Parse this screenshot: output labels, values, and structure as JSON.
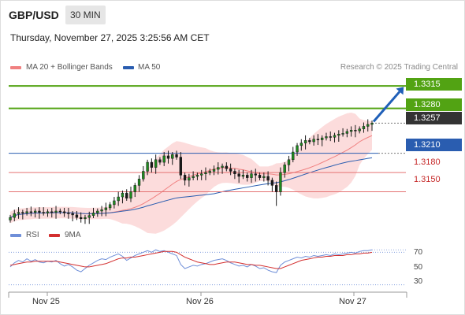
{
  "header": {
    "pair": "GBP/USD",
    "timeframe": "30 MIN",
    "timestamp": "Thursday, November 27, 2025 3:25:56 AM CET"
  },
  "legend": {
    "ma20": "MA 20 + Bollinger Bands",
    "ma50": "MA 50",
    "credit": "Research © 2025 Trading Central"
  },
  "rsi_legend": {
    "rsi": "RSI",
    "ma9": "9MA"
  },
  "colors": {
    "candle": "#1e8a1e",
    "ma20": "#f08080",
    "bollinger": "#fbd0d0",
    "ma50": "#2a5db0",
    "target": "#52a313",
    "pivot": "#2a5db0",
    "support": "#e57373",
    "current": "#333333",
    "rsi": "#6f8fd8",
    "rsi_ma": "#d32f2f",
    "arrow": "#1f5fb8"
  },
  "chart_data": [
    {
      "type": "candlestick",
      "x_ticks": [
        "Nov 25",
        "Nov 26",
        "Nov 27"
      ],
      "ylim": [
        1.3093,
        1.3336
      ],
      "levels": [
        {
          "value": 1.3315,
          "label": "1.3315",
          "role": "target"
        },
        {
          "value": 1.328,
          "label": "1.3280",
          "role": "target"
        },
        {
          "value": 1.3257,
          "label": "1.3257",
          "role": "current"
        },
        {
          "value": 1.321,
          "label": "1.3210",
          "role": "pivot"
        },
        {
          "value": 1.318,
          "label": "1.3180",
          "role": "support"
        },
        {
          "value": 1.315,
          "label": "1.3150",
          "role": "support"
        }
      ],
      "close": [
        1.311,
        1.3116,
        1.3118,
        1.3117,
        1.3119,
        1.3118,
        1.312,
        1.3118,
        1.3117,
        1.3119,
        1.3118,
        1.312,
        1.3119,
        1.3117,
        1.3116,
        1.3114,
        1.311,
        1.3108,
        1.311,
        1.3113,
        1.3117,
        1.312,
        1.3122,
        1.3125,
        1.313,
        1.3136,
        1.3142,
        1.3148,
        1.314,
        1.315,
        1.316,
        1.317,
        1.3182,
        1.3196,
        1.3188,
        1.32,
        1.3196,
        1.3206,
        1.3202,
        1.3208,
        1.3204,
        1.3176,
        1.3168,
        1.3172,
        1.3174,
        1.3176,
        1.3178,
        1.318,
        1.3182,
        1.3185,
        1.3188,
        1.319,
        1.3186,
        1.3182,
        1.3178,
        1.3174,
        1.3176,
        1.3172,
        1.3178,
        1.3176,
        1.3172,
        1.3174,
        1.3168,
        1.316,
        1.315,
        1.318,
        1.3192,
        1.32,
        1.3212,
        1.3222,
        1.3226,
        1.323,
        1.3228,
        1.3232,
        1.3231,
        1.3234,
        1.3236,
        1.3235,
        1.3238,
        1.324,
        1.3241,
        1.3244,
        1.3246,
        1.3245,
        1.3248,
        1.3252,
        1.3255,
        1.3257
      ]
    },
    {
      "type": "line",
      "name": "RSI",
      "yticks": [
        70,
        50,
        30
      ],
      "ylim": [
        20,
        80
      ],
      "rsi": [
        52,
        57,
        60,
        58,
        62,
        59,
        61,
        58,
        57,
        59,
        58,
        60,
        56,
        53,
        55,
        52,
        48,
        46,
        50,
        54,
        57,
        60,
        62,
        61,
        64,
        66,
        68,
        65,
        60,
        63,
        66,
        68,
        70,
        72,
        70,
        73,
        71,
        72,
        70,
        68,
        66,
        55,
        50,
        52,
        54,
        53,
        55,
        56,
        58,
        60,
        61,
        62,
        60,
        57,
        55,
        53,
        54,
        52,
        55,
        53,
        50,
        51,
        48,
        46,
        45,
        54,
        58,
        60,
        62,
        64,
        63,
        65,
        64,
        66,
        65,
        66,
        67,
        66,
        68,
        67,
        68,
        69,
        70,
        69,
        71,
        72,
        72,
        73
      ],
      "ma9": [
        54,
        55,
        56,
        57,
        58,
        58,
        59,
        59,
        59,
        59,
        59,
        59,
        58,
        57,
        56,
        55,
        54,
        53,
        52,
        52,
        53,
        54,
        55,
        56,
        58,
        60,
        62,
        63,
        63,
        64,
        64,
        65,
        66,
        67,
        68,
        69,
        70,
        71,
        71,
        71,
        70,
        67,
        64,
        62,
        60,
        58,
        57,
        56,
        55,
        55,
        56,
        57,
        58,
        58,
        58,
        57,
        56,
        55,
        55,
        54,
        54,
        53,
        52,
        51,
        50,
        50,
        52,
        54,
        56,
        58,
        60,
        61,
        62,
        63,
        64,
        64,
        65,
        65,
        66,
        66,
        66,
        67,
        67,
        68,
        68,
        69,
        69,
        70
      ]
    }
  ]
}
